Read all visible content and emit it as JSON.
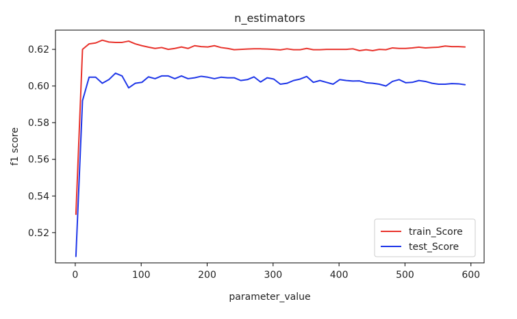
{
  "chart_data": {
    "type": "line",
    "title": "n_estimators",
    "xlabel": "parameter_value",
    "ylabel": "f1 score",
    "xlim": [
      -30,
      620
    ],
    "ylim": [
      0.5035,
      0.6305
    ],
    "xticks": [
      0,
      100,
      200,
      300,
      400,
      500,
      600
    ],
    "xtick_labels": [
      "0",
      "100",
      "200",
      "300",
      "400",
      "500",
      "600"
    ],
    "yticks": [
      0.52,
      0.54,
      0.56,
      0.58,
      0.6,
      0.62
    ],
    "ytick_labels": [
      "0.52",
      "0.54",
      "0.56",
      "0.58",
      "0.60",
      "0.62"
    ],
    "grid": false,
    "legend_position": "lower-right",
    "x": [
      1,
      11,
      21,
      31,
      41,
      51,
      61,
      71,
      81,
      91,
      101,
      111,
      121,
      131,
      141,
      151,
      161,
      171,
      181,
      191,
      201,
      211,
      221,
      231,
      241,
      251,
      261,
      271,
      281,
      291,
      301,
      311,
      321,
      331,
      341,
      351,
      361,
      371,
      381,
      391,
      401,
      411,
      421,
      431,
      441,
      451,
      461,
      471,
      481,
      491,
      501,
      511,
      521,
      531,
      541,
      551,
      561,
      571,
      581,
      591
    ],
    "series": [
      {
        "name": "train_Score",
        "color": "#e8322b",
        "values": [
          0.53,
          0.62,
          0.623,
          0.6235,
          0.625,
          0.624,
          0.6238,
          0.6238,
          0.6245,
          0.623,
          0.622,
          0.6212,
          0.6205,
          0.621,
          0.62,
          0.6205,
          0.6213,
          0.6205,
          0.622,
          0.6215,
          0.6213,
          0.622,
          0.621,
          0.6205,
          0.6198,
          0.62,
          0.6202,
          0.6203,
          0.6203,
          0.6202,
          0.62,
          0.6197,
          0.6203,
          0.6198,
          0.6198,
          0.6205,
          0.6198,
          0.6198,
          0.62,
          0.62,
          0.62,
          0.62,
          0.6203,
          0.6193,
          0.6198,
          0.6193,
          0.62,
          0.6198,
          0.6208,
          0.6205,
          0.6205,
          0.6208,
          0.6212,
          0.6208,
          0.621,
          0.6212,
          0.6218,
          0.6215,
          0.6215,
          0.6213
        ]
      },
      {
        "name": "test_Score",
        "color": "#1d35e8",
        "values": [
          0.507,
          0.592,
          0.6048,
          0.6048,
          0.6015,
          0.6035,
          0.607,
          0.6055,
          0.599,
          0.6015,
          0.602,
          0.605,
          0.604,
          0.6055,
          0.6055,
          0.604,
          0.6055,
          0.604,
          0.6045,
          0.6053,
          0.6048,
          0.604,
          0.6048,
          0.6045,
          0.6045,
          0.603,
          0.6035,
          0.605,
          0.6022,
          0.6045,
          0.6038,
          0.601,
          0.6015,
          0.603,
          0.6038,
          0.6052,
          0.602,
          0.603,
          0.602,
          0.601,
          0.6035,
          0.603,
          0.6027,
          0.6028,
          0.6018,
          0.6015,
          0.601,
          0.6,
          0.6025,
          0.6035,
          0.6018,
          0.602,
          0.603,
          0.6025,
          0.6015,
          0.601,
          0.601,
          0.6013,
          0.6012,
          0.6007
        ]
      }
    ]
  }
}
